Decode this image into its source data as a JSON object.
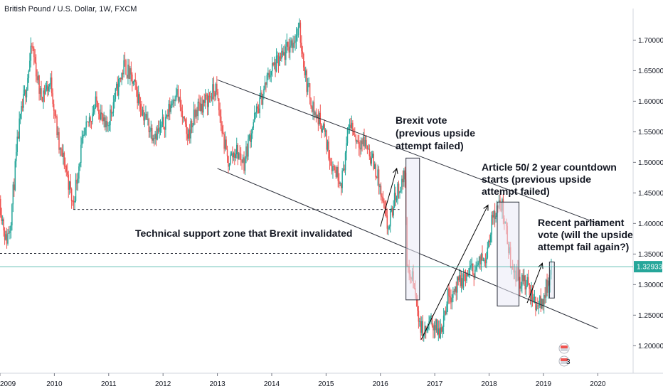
{
  "chart_data": {
    "type": "candlestick",
    "title": "British Pound / U.S. Dollar, 1W, FXCM",
    "x_tick_labels": [
      "2009",
      "2010",
      "2011",
      "2012",
      "2013",
      "2014",
      "2015",
      "2016",
      "2017",
      "2018",
      "2019",
      "2020"
    ],
    "y_tick_labels": [
      "1.20000",
      "1.25000",
      "1.30000",
      "1.35000",
      "1.40000",
      "1.45000",
      "1.50000",
      "1.55000",
      "1.60000",
      "1.65000",
      "1.70000"
    ],
    "ylim": [
      1.155,
      1.74
    ],
    "xlim": [
      2009.0,
      2020.65
    ],
    "last_price": 1.32933,
    "last_price_label": "1.32933",
    "colors": {
      "up": "#26a69a",
      "down": "#ef5350",
      "text": "#131722",
      "last_price_line": "#26a69a",
      "line": "#2a2e39",
      "box_fill": "#e9eaf5"
    },
    "price_path": [
      [
        2009.0,
        1.44
      ],
      [
        2009.12,
        1.37
      ],
      [
        2009.2,
        1.4
      ],
      [
        2009.35,
        1.55
      ],
      [
        2009.5,
        1.63
      ],
      [
        2009.6,
        1.69
      ],
      [
        2009.75,
        1.61
      ],
      [
        2009.95,
        1.63
      ],
      [
        2010.1,
        1.52
      ],
      [
        2010.2,
        1.5
      ],
      [
        2010.35,
        1.43
      ],
      [
        2010.5,
        1.52
      ],
      [
        2010.65,
        1.57
      ],
      [
        2010.8,
        1.6
      ],
      [
        2010.95,
        1.55
      ],
      [
        2011.1,
        1.6
      ],
      [
        2011.3,
        1.66
      ],
      [
        2011.5,
        1.62
      ],
      [
        2011.65,
        1.58
      ],
      [
        2011.8,
        1.55
      ],
      [
        2011.95,
        1.55
      ],
      [
        2012.1,
        1.58
      ],
      [
        2012.25,
        1.62
      ],
      [
        2012.45,
        1.54
      ],
      [
        2012.65,
        1.59
      ],
      [
        2012.8,
        1.6
      ],
      [
        2012.98,
        1.62
      ],
      [
        2013.08,
        1.56
      ],
      [
        2013.2,
        1.5
      ],
      [
        2013.35,
        1.52
      ],
      [
        2013.5,
        1.5
      ],
      [
        2013.65,
        1.56
      ],
      [
        2013.8,
        1.6
      ],
      [
        2013.98,
        1.65
      ],
      [
        2014.2,
        1.67
      ],
      [
        2014.4,
        1.7
      ],
      [
        2014.52,
        1.715
      ],
      [
        2014.65,
        1.63
      ],
      [
        2014.8,
        1.58
      ],
      [
        2014.95,
        1.56
      ],
      [
        2015.1,
        1.5
      ],
      [
        2015.3,
        1.47
      ],
      [
        2015.45,
        1.57
      ],
      [
        2015.55,
        1.54
      ],
      [
        2015.75,
        1.53
      ],
      [
        2015.95,
        1.48
      ],
      [
        2016.05,
        1.43
      ],
      [
        2016.15,
        1.39
      ],
      [
        2016.3,
        1.45
      ],
      [
        2016.47,
        1.48
      ],
      [
        2016.5,
        1.32
      ],
      [
        2016.6,
        1.31
      ],
      [
        2016.75,
        1.23
      ],
      [
        2016.82,
        1.22
      ],
      [
        2016.95,
        1.24
      ],
      [
        2017.1,
        1.22
      ],
      [
        2017.25,
        1.28
      ],
      [
        2017.45,
        1.3
      ],
      [
        2017.65,
        1.32
      ],
      [
        2017.8,
        1.33
      ],
      [
        2017.95,
        1.35
      ],
      [
        2018.1,
        1.42
      ],
      [
        2018.25,
        1.43
      ],
      [
        2018.4,
        1.34
      ],
      [
        2018.55,
        1.31
      ],
      [
        2018.7,
        1.3
      ],
      [
        2018.85,
        1.27
      ],
      [
        2018.98,
        1.27
      ],
      [
        2019.08,
        1.3
      ],
      [
        2019.15,
        1.32
      ]
    ],
    "lines": [
      {
        "name": "channel-upper",
        "points": [
          [
            2013.0,
            1.635
          ],
          [
            2020.0,
            1.4
          ]
        ]
      },
      {
        "name": "channel-lower",
        "points": [
          [
            2013.0,
            1.49
          ],
          [
            2020.0,
            1.228
          ]
        ]
      },
      {
        "name": "support-2010",
        "dashed": true,
        "points": [
          [
            2010.35,
            1.423
          ],
          [
            2016.35,
            1.423
          ]
        ]
      },
      {
        "name": "support-2009",
        "dashed": true,
        "points": [
          [
            2009.0,
            1.351
          ],
          [
            2016.45,
            1.351
          ]
        ]
      }
    ],
    "boxes": [
      {
        "name": "brexit-box",
        "x0": 2016.47,
        "x1": 2016.72,
        "y0": 1.275,
        "y1": 1.507
      },
      {
        "name": "article50-box",
        "x0": 2018.15,
        "x1": 2018.55,
        "y0": 1.265,
        "y1": 1.435
      },
      {
        "name": "parliament-box",
        "x0": 2019.11,
        "x1": 2019.2,
        "y0": 1.278,
        "y1": 1.337
      }
    ],
    "arrows": [
      {
        "name": "arrow-pre-brexit",
        "from": [
          2016.0,
          1.395
        ],
        "to": [
          2016.3,
          1.49
        ]
      },
      {
        "name": "arrow-article50",
        "from": [
          2016.75,
          1.21
        ],
        "to": [
          2017.98,
          1.43
        ]
      },
      {
        "name": "arrow-parliament",
        "from": [
          2018.7,
          1.27
        ],
        "to": [
          2018.98,
          1.335
        ]
      }
    ],
    "annotations": [
      {
        "name": "brexit-vote-note",
        "lines": [
          "Brexit vote",
          "(previous upside",
          "attempt failed)"
        ]
      },
      {
        "name": "article50-note",
        "lines": [
          "Article 50/ 2 year countdown",
          "starts (previous upside",
          "attempt failed)"
        ]
      },
      {
        "name": "parliament-note",
        "lines": [
          "Recent parliament",
          "vote (will the upside",
          "attempt fail again?)"
        ]
      },
      {
        "name": "support-zone-note",
        "lines": [
          "Technical support zone that Brexit invalidated"
        ]
      }
    ],
    "events_badge": "3",
    "grid": false
  }
}
